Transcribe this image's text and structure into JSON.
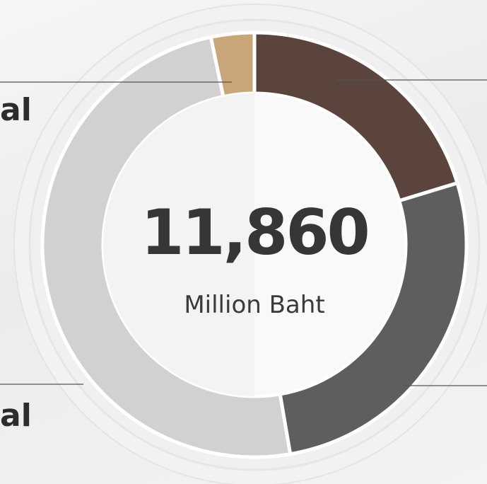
{
  "chart_data": {
    "type": "pie",
    "variant": "donut",
    "total": {
      "value": "11,860",
      "unit": "Million Baht"
    },
    "slices": [
      {
        "label": "",
        "value": 20.3,
        "color": "#5b443b"
      },
      {
        "label": "",
        "value": 27.0,
        "color": "#5e5e5e"
      },
      {
        "label": "",
        "value": 49.4,
        "color": "#d2d0d1"
      },
      {
        "label": "",
        "value": 3.3,
        "color": "#c9a57a"
      }
    ],
    "callout_labels": [
      {
        "text": "al"
      },
      {
        "text": "al"
      }
    ]
  }
}
